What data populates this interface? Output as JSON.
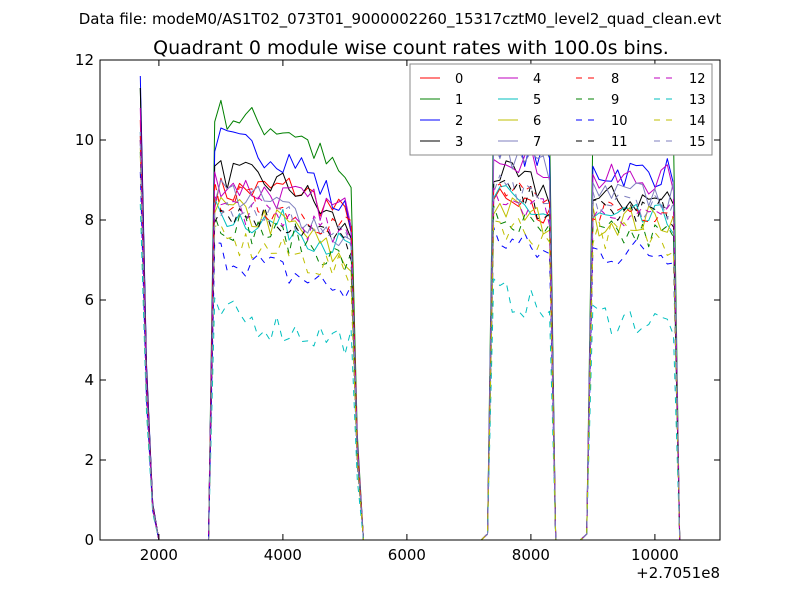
{
  "chart_data": {
    "type": "line",
    "suptitle": "Data file: modeM0/AS1T02_073T01_9000002260_15317cztM0_level2_quad_clean.evt",
    "title": "Quadrant 0 module wise count rates with 100.0s bins.",
    "xlabel": "",
    "ylabel": "",
    "xlim": [
      1050,
      11050
    ],
    "ylim": [
      0,
      12
    ],
    "x_offset_label": "+2.7051e8",
    "xticks": [
      {
        "value": 2000,
        "label": "2000"
      },
      {
        "value": 4000,
        "label": "4000"
      },
      {
        "value": 6000,
        "label": "6000"
      },
      {
        "value": 8000,
        "label": "8000"
      },
      {
        "value": 10000,
        "label": "10000"
      }
    ],
    "yticks": [
      {
        "value": 0,
        "label": "0"
      },
      {
        "value": 2,
        "label": "2"
      },
      {
        "value": 4,
        "label": "4"
      },
      {
        "value": 6,
        "label": "6"
      },
      {
        "value": 8,
        "label": "8"
      },
      {
        "value": 10,
        "label": "10"
      },
      {
        "value": 12,
        "label": "12"
      }
    ],
    "legend_location": "top-right",
    "legend_columns": 4,
    "segments": [
      {
        "start": 1700,
        "end": 1900
      },
      {
        "start": 2900,
        "end": 5100
      },
      {
        "start": 7400,
        "end": 8300
      },
      {
        "start": 9000,
        "end": 10300
      }
    ],
    "series": [
      {
        "name": "0",
        "color": "#ff0000",
        "style": "solid",
        "profile": [
          10.5,
          8.7,
          8.8,
          8.0,
          8.5
        ]
      },
      {
        "name": "1",
        "color": "#008000",
        "style": "solid",
        "profile": [
          11.3,
          10.7,
          10.2,
          8.8,
          11.0,
          10.0,
          10.0
        ]
      },
      {
        "name": "2",
        "color": "#0000ff",
        "style": "solid",
        "profile": [
          11.6,
          10.0,
          9.5,
          8.0,
          10.0,
          9.2,
          9.2
        ]
      },
      {
        "name": "3",
        "color": "#000000",
        "style": "solid",
        "profile": [
          11.3,
          9.2,
          8.8,
          7.6,
          9.2,
          8.5,
          8.5
        ]
      },
      {
        "name": "4",
        "color": "#bf00bf",
        "style": "solid",
        "profile": [
          10.8,
          9.0,
          8.5,
          8.2,
          9.8,
          9.0,
          9.0
        ]
      },
      {
        "name": "5",
        "color": "#00bfbf",
        "style": "solid",
        "profile": [
          10.2,
          8.2,
          7.8,
          7.2,
          8.6,
          8.0,
          8.0
        ]
      },
      {
        "name": "6",
        "color": "#bfbf00",
        "style": "solid",
        "profile": [
          9.8,
          8.3,
          7.8,
          6.8,
          8.4,
          8.0,
          8.0
        ]
      },
      {
        "name": "7",
        "color": "#7f7fbf",
        "style": "solid",
        "profile": [
          10.2,
          8.8,
          8.2,
          7.4,
          9.8,
          8.6,
          8.6
        ]
      },
      {
        "name": "8",
        "color": "#ff0000",
        "style": "dashed",
        "profile": [
          10.1,
          8.6,
          8.2,
          7.8,
          8.8,
          8.3,
          8.3
        ]
      },
      {
        "name": "9",
        "color": "#008000",
        "style": "dashed",
        "profile": [
          9.7,
          8.0,
          7.5,
          6.9,
          8.1,
          7.6,
          7.6
        ]
      },
      {
        "name": "10",
        "color": "#0000ff",
        "style": "dashed",
        "profile": [
          9.2,
          7.2,
          6.6,
          6.2,
          7.6,
          7.2,
          7.2
        ]
      },
      {
        "name": "11",
        "color": "#000000",
        "style": "dashed",
        "profile": [
          10.0,
          8.3,
          7.9,
          7.3,
          8.8,
          8.2,
          8.2
        ]
      },
      {
        "name": "12",
        "color": "#bf00bf",
        "style": "dashed",
        "profile": [
          10.0,
          8.4,
          8.0,
          7.4,
          8.7,
          8.2,
          8.2
        ]
      },
      {
        "name": "13",
        "color": "#00bfbf",
        "style": "dashed",
        "profile": [
          8.4,
          5.7,
          5.2,
          5.0,
          6.2,
          5.6,
          5.4
        ]
      },
      {
        "name": "14",
        "color": "#bfbf00",
        "style": "dashed",
        "profile": [
          9.6,
          7.5,
          7.1,
          6.6,
          8.0,
          7.7,
          7.5
        ]
      },
      {
        "name": "15",
        "color": "#7f7fbf",
        "style": "dashed",
        "profile": [
          9.9,
          8.5,
          8.0,
          7.4,
          8.8,
          8.4,
          8.4
        ]
      }
    ]
  }
}
